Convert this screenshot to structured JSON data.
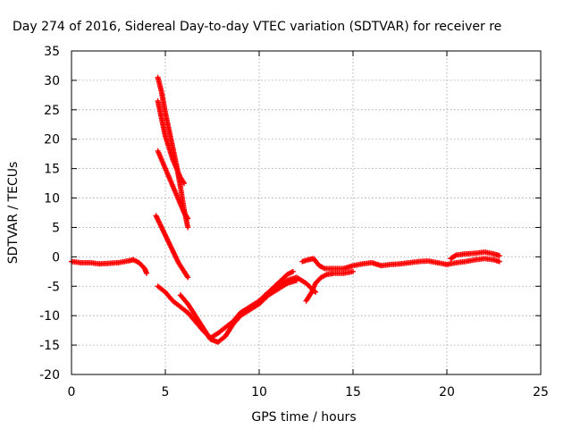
{
  "chart_data": {
    "type": "scatter",
    "title": "Day 274 of 2016, Sidereal Day-to-day VTEC variation (SDTVAR) for receiver re",
    "xlabel": "GPS time / hours",
    "ylabel": "SDTVAR / TECUs",
    "xlim": [
      0,
      25
    ],
    "ylim": [
      -20,
      35
    ],
    "xticks": [
      "0",
      "5",
      "10",
      "15",
      "20",
      "25"
    ],
    "yticks": [
      "-20",
      "-15",
      "-10",
      "-5",
      "0",
      "5",
      "10",
      "15",
      "20",
      "25",
      "30",
      "35"
    ],
    "grid": true,
    "legend": "none",
    "marker_color": "#ff0000",
    "series": [
      {
        "x": [
          0,
          0.5,
          1,
          1.5,
          2,
          2.5,
          3,
          3.3,
          3.6,
          3.9,
          4.0
        ],
        "y": [
          -0.8,
          -1.0,
          -1.0,
          -1.2,
          -1.1,
          -1.0,
          -0.7,
          -0.5,
          -1.0,
          -2.0,
          -2.8
        ]
      },
      {
        "x": [
          4.6,
          4.8,
          5.0,
          5.2,
          5.4,
          5.6,
          5.8,
          6.0,
          6.2
        ],
        "y": [
          30.5,
          28,
          24.5,
          21.5,
          18.5,
          15.5,
          12,
          8,
          5
        ]
      },
      {
        "x": [
          4.6,
          4.8,
          5.0,
          5.2,
          5.4,
          5.6,
          5.8,
          6.0
        ],
        "y": [
          26.5,
          23.5,
          20.5,
          18.5,
          16.5,
          15,
          13.5,
          12.5
        ]
      },
      {
        "x": [
          4.6,
          4.8,
          5.0,
          5.2,
          5.4,
          5.6,
          5.8,
          6.0,
          6.2
        ],
        "y": [
          18,
          16.5,
          15,
          13.5,
          12,
          10.5,
          9,
          7.5,
          6.5
        ]
      },
      {
        "x": [
          4.5,
          4.8,
          5.1,
          5.4,
          5.7,
          6.0,
          6.2
        ],
        "y": [
          7,
          5,
          3,
          1,
          -1,
          -2.5,
          -3.5
        ]
      },
      {
        "x": [
          4.6,
          5.0,
          5.4,
          5.8,
          6.2,
          6.6,
          7.0,
          7.4,
          7.8,
          8.2,
          8.6,
          9.0,
          9.5,
          10.0,
          10.5,
          11.0,
          11.5,
          11.8
        ],
        "y": [
          -5,
          -6,
          -7.5,
          -8.5,
          -9.5,
          -11,
          -12.5,
          -13.8,
          -13,
          -12,
          -11,
          -9.5,
          -8.5,
          -7.5,
          -6,
          -4.5,
          -3,
          -2.5
        ]
      },
      {
        "x": [
          5.8,
          6.2,
          6.6,
          7.0,
          7.4,
          7.8,
          8.2,
          8.6,
          9.0,
          9.5,
          10.0,
          10.5,
          11.0,
          11.5,
          12.0
        ],
        "y": [
          -6.5,
          -8,
          -10,
          -12,
          -14,
          -14.5,
          -13.5,
          -11.5,
          -10,
          -9,
          -8,
          -6.5,
          -5.5,
          -4.5,
          -4
        ]
      },
      {
        "x": [
          9.0,
          9.5,
          10.0,
          10.5,
          11.0,
          11.5,
          12.0,
          12.5,
          13.0
        ],
        "y": [
          -10,
          -9,
          -7.5,
          -6,
          -5,
          -4,
          -3.5,
          -4.5,
          -6
        ]
      },
      {
        "x": [
          12.3,
          12.6,
          12.9,
          13.2,
          13.5,
          14.0,
          14.5,
          15.0,
          15.5,
          16.0,
          16.5,
          17.0,
          17.5,
          18.0,
          18.5,
          19.0,
          19.5,
          20.0
        ],
        "y": [
          -0.8,
          -0.5,
          -0.3,
          -1.5,
          -2.0,
          -2.0,
          -2.0,
          -1.5,
          -1.2,
          -1.0,
          -1.5,
          -1.3,
          -1.2,
          -1.0,
          -0.8,
          -0.7,
          -1.0,
          -1.3
        ]
      },
      {
        "x": [
          12.5,
          12.8,
          13.0,
          13.3,
          13.6,
          14.0,
          14.5,
          15.0
        ],
        "y": [
          -7.5,
          -6,
          -4.5,
          -3.5,
          -3.0,
          -2.8,
          -2.8,
          -2.5
        ]
      },
      {
        "x": [
          20.2,
          20.5,
          21.0,
          21.5,
          22.0,
          22.5,
          22.8
        ],
        "y": [
          -0.3,
          0.3,
          0.5,
          0.6,
          0.8,
          0.5,
          0.2
        ]
      },
      {
        "x": [
          20.0,
          20.5,
          21.0,
          21.5,
          22.0,
          22.5,
          22.8
        ],
        "y": [
          -1.3,
          -1.0,
          -0.8,
          -0.5,
          -0.3,
          -0.5,
          -0.8
        ]
      }
    ]
  }
}
